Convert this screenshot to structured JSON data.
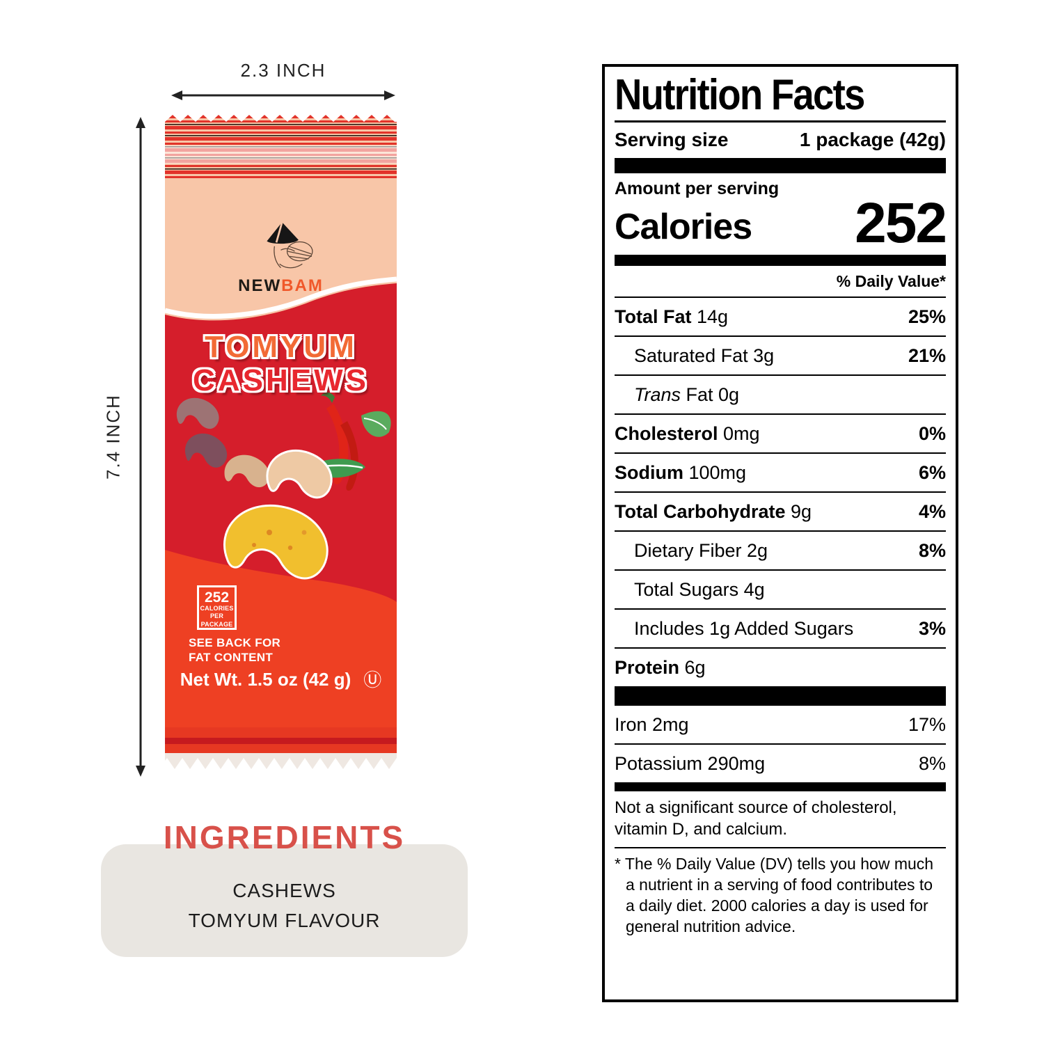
{
  "dimensions": {
    "width_label": "2.3 INCH",
    "height_label": "7.4 INCH"
  },
  "package": {
    "brand_part1": "NEW",
    "brand_part2": "BAM",
    "title_line1": "TOMYUM",
    "title_line2": "CASHEWS",
    "calories_badge": {
      "value": "252",
      "line1": "CALORIES",
      "line2": "PER PACKAGE"
    },
    "see_back_line1": "SEE BACK FOR",
    "see_back_line2": "FAT CONTENT",
    "net_weight": "Net Wt. 1.5 oz (42 g)",
    "kosher_symbol": "Ⓤ",
    "artwork_icons": [
      "farmer-hat-sketch",
      "cashew-illustrations",
      "chili-illustration",
      "leaf-illustrations"
    ]
  },
  "ingredients": {
    "heading": "INGREDIENTS",
    "items": [
      "CASHEWS",
      "TOMYUM FLAVOUR"
    ]
  },
  "nutrition": {
    "title": "Nutrition Facts",
    "serving_size_label": "Serving size",
    "serving_size_value": "1 package (42g)",
    "amount_per_serving": "Amount per serving",
    "calories_label": "Calories",
    "calories_value": "252",
    "daily_value_header": "% Daily Value*",
    "rows": [
      {
        "parts": [
          {
            "t": "Total Fat",
            "b": true
          },
          {
            "t": " 14g"
          }
        ],
        "pct": "25%",
        "indent": 0
      },
      {
        "parts": [
          {
            "t": "Saturated Fat 3g"
          }
        ],
        "pct": "21%",
        "indent": 1
      },
      {
        "parts": [
          {
            "t": "Trans",
            "i": true
          },
          {
            "t": " Fat 0g"
          }
        ],
        "pct": "",
        "indent": 1
      },
      {
        "parts": [
          {
            "t": "Cholesterol",
            "b": true
          },
          {
            "t": " 0mg"
          }
        ],
        "pct": "0%",
        "indent": 0
      },
      {
        "parts": [
          {
            "t": "Sodium",
            "b": true
          },
          {
            "t": " 100mg"
          }
        ],
        "pct": "6%",
        "indent": 0
      },
      {
        "parts": [
          {
            "t": "Total Carbohydrate",
            "b": true
          },
          {
            "t": " 9g"
          }
        ],
        "pct": "4%",
        "indent": 0
      },
      {
        "parts": [
          {
            "t": "Dietary Fiber 2g"
          }
        ],
        "pct": "8%",
        "indent": 1
      },
      {
        "parts": [
          {
            "t": "Total Sugars 4g"
          }
        ],
        "pct": "",
        "indent": 1
      },
      {
        "parts": [
          {
            "t": "Includes 1g Added Sugars"
          }
        ],
        "pct": "3%",
        "indent": 1
      },
      {
        "parts": [
          {
            "t": "Protein",
            "b": true
          },
          {
            "t": " 6g"
          }
        ],
        "pct": "",
        "indent": 0
      }
    ],
    "minerals": [
      {
        "label": "Iron 2mg",
        "pct": "17%"
      },
      {
        "label": "Potassium 290mg",
        "pct": "8%"
      }
    ],
    "not_significant": "Not a significant source of cholesterol, vitamin D, and calcium.",
    "footnote": "* The % Daily Value (DV) tells you how much a nutrient in a serving of food contributes to a daily diet. 2000 calories a day is used for general nutrition advice."
  },
  "colors": {
    "package_peach": "#f8c6a8",
    "package_red": "#d51e2b",
    "package_orange": "#ee4023",
    "brand_orange": "#f0582a",
    "title_orange": "#f26a35",
    "title_red": "#e8282f",
    "ingredients_red": "#d8514a",
    "label_ink": "#000000"
  }
}
